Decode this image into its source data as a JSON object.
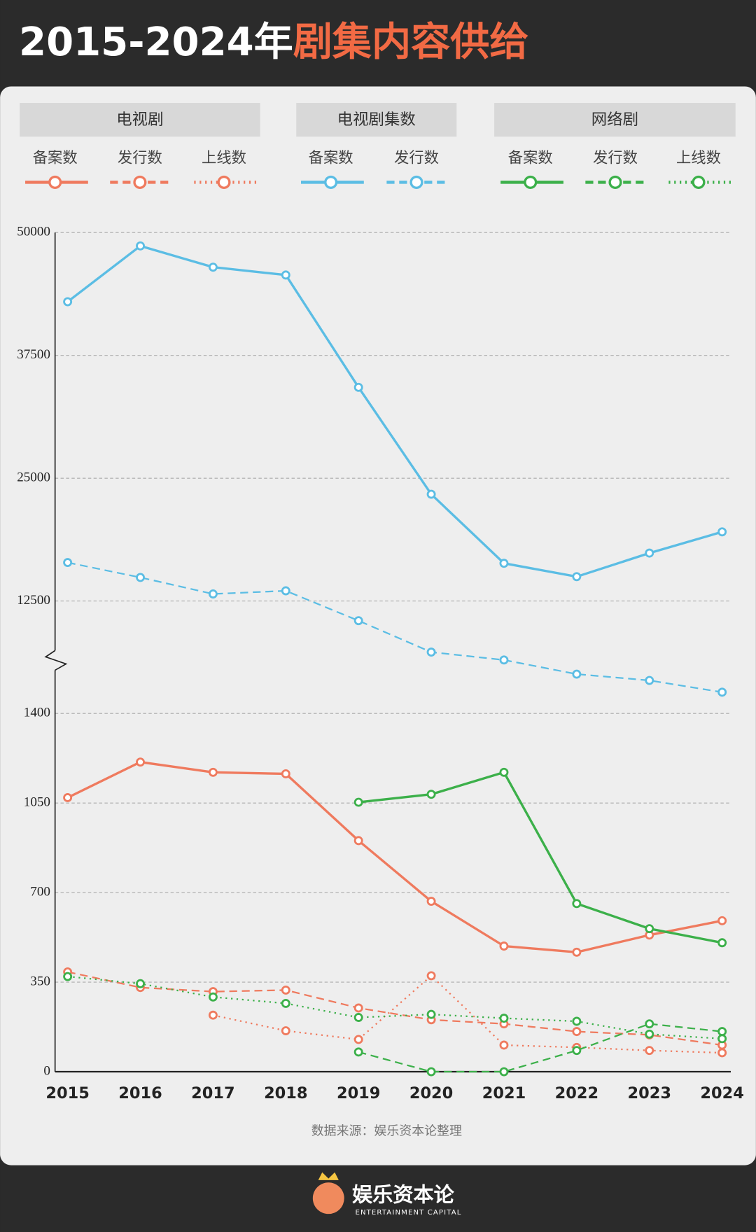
{
  "header": {
    "title_prefix": "2015-2024年",
    "title_highlight": "剧集内容供给"
  },
  "chart_data": {
    "type": "line",
    "categories": [
      "2015",
      "2016",
      "2017",
      "2018",
      "2019",
      "2020",
      "2021",
      "2022",
      "2023",
      "2024"
    ],
    "ylim": [
      0,
      1400
    ],
    "yticks": [
      0,
      350,
      700,
      1050,
      1400
    ],
    "y2lim": [
      2500,
      50000
    ],
    "y2ticks": [
      12500,
      25000,
      37500,
      50000
    ],
    "grid": true,
    "groups": [
      {
        "name": "电视剧",
        "series": [
          {
            "name": "备案数",
            "color": "#ef7a5e",
            "dash": "solid",
            "values": [
              1071,
              1210,
              1170,
              1164,
              903,
              666,
              491,
              467,
              534,
              590
            ]
          },
          {
            "name": "发行数",
            "color": "#ef7a5e",
            "dash": "dashed",
            "values": [
              390,
              329,
              313,
              319,
              249,
              203,
              187,
              157,
              144,
              104
            ]
          },
          {
            "name": "上线数",
            "color": "#ef7a5e",
            "dash": "dotted",
            "values": [
              null,
              null,
              221,
              160,
              126,
              375,
              104,
              95,
              83,
              74
            ]
          }
        ]
      },
      {
        "name": "电视剧集数",
        "series": [
          {
            "name": "备案数",
            "color": "#5bbde4",
            "dash": "solid",
            "axis": "y2",
            "values": [
              42960,
              48640,
              46480,
              45680,
              34250,
              23370,
              16340,
              14980,
              17380,
              19540
            ]
          },
          {
            "name": "发行数",
            "color": "#5bbde4",
            "dash": "dashed",
            "axis": "y2",
            "values": [
              16420,
              14900,
              13220,
              13540,
              10500,
              7300,
              6500,
              5060,
              4420,
              3220
            ]
          }
        ]
      },
      {
        "name": "网络剧",
        "series": [
          {
            "name": "备案数",
            "color": "#3cb04a",
            "dash": "solid",
            "values": [
              null,
              null,
              null,
              null,
              1053,
              1084,
              1170,
              657,
              559,
              504
            ]
          },
          {
            "name": "发行数",
            "color": "#3cb04a",
            "dash": "dashed",
            "values": [
              null,
              null,
              null,
              null,
              77,
              0,
              0,
              83,
              187,
              157
            ]
          },
          {
            "name": "上线数",
            "color": "#3cb04a",
            "dash": "dotted",
            "values": [
              372,
              344,
              292,
              267,
              212,
              224,
              209,
              197,
              147,
              129
            ]
          }
        ]
      }
    ],
    "source": "数据来源：娱乐资本论整理"
  },
  "footer": {
    "brand": "娱乐资本论",
    "brand_en": "ENTERTAINMENT CAPITAL"
  }
}
